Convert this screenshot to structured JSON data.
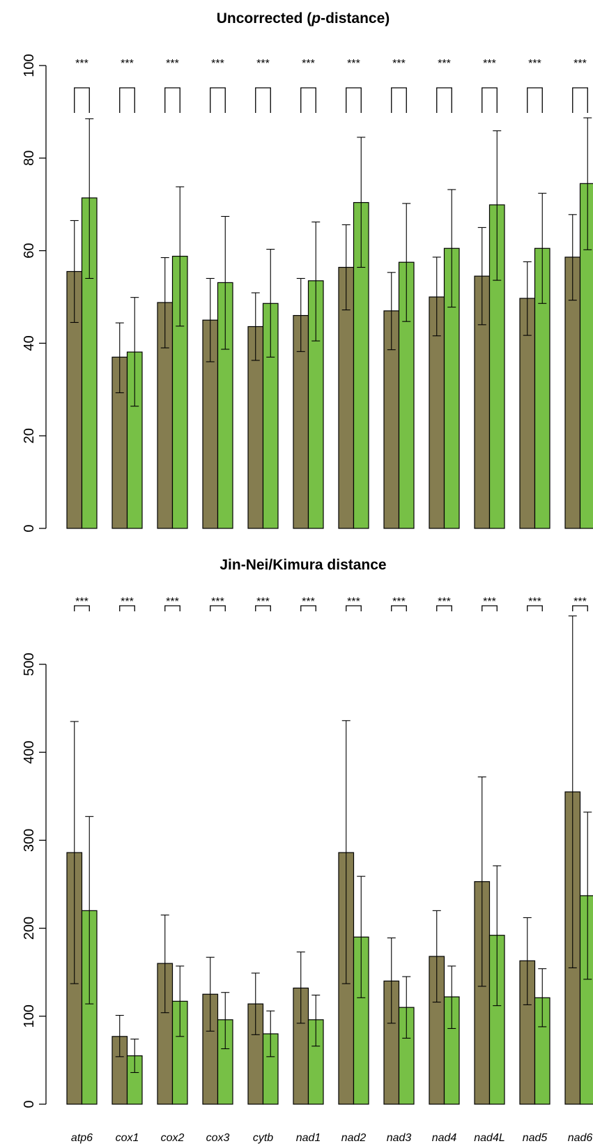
{
  "colors": {
    "series_a": "#857D50",
    "series_b": "#77C046"
  },
  "chart_data": [
    {
      "type": "bar",
      "title_pre": "Uncorrected (",
      "title_em": "p",
      "title_post": "-distance)",
      "xlabel": "",
      "ylabel": "",
      "ylim": [
        0,
        100
      ],
      "yticks": [
        0,
        20,
        40,
        60,
        80,
        100
      ],
      "grid": false,
      "legend": "none",
      "categories": [
        "atp6",
        "cox1",
        "cox2",
        "cox3",
        "cytb",
        "nad1",
        "nad2",
        "nad3",
        "nad4",
        "nad4L",
        "nad5",
        "nad6"
      ],
      "significance": [
        "***",
        "***",
        "***",
        "***",
        "***",
        "***",
        "***",
        "***",
        "***",
        "***",
        "***",
        "***"
      ],
      "series": [
        {
          "values": [
            55.5,
            37,
            48.8,
            45,
            43.6,
            46,
            56.4,
            47,
            50,
            54.5,
            49.7,
            58.6
          ],
          "err_low": [
            44.5,
            29.3,
            39,
            36,
            36.3,
            38.2,
            47.2,
            38.6,
            41.6,
            44,
            41.7,
            49.3
          ],
          "err_high": [
            66.5,
            44.4,
            58.5,
            54,
            50.9,
            54,
            65.6,
            55.3,
            58.6,
            65,
            57.6,
            67.8
          ]
        },
        {
          "values": [
            71.4,
            38.1,
            58.8,
            53.1,
            48.6,
            53.5,
            70.4,
            57.5,
            60.5,
            69.9,
            60.5,
            74.5
          ],
          "err_low": [
            54,
            26.4,
            43.7,
            38.7,
            37,
            40.5,
            56.4,
            44.7,
            47.8,
            53.6,
            48.6,
            60.2
          ],
          "err_high": [
            88.5,
            49.9,
            73.8,
            67.4,
            60.3,
            66.2,
            84.5,
            70.2,
            73.2,
            85.9,
            72.4,
            88.7
          ]
        }
      ]
    },
    {
      "type": "bar",
      "title": "Jin-Nei/Kimura distance",
      "xlabel": "",
      "ylabel": "",
      "ylim": [
        0,
        550
      ],
      "yticks": [
        0,
        100,
        200,
        300,
        400,
        500
      ],
      "grid": false,
      "legend": "none",
      "categories": [
        "atp6",
        "cox1",
        "cox2",
        "cox3",
        "cytb",
        "nad1",
        "nad2",
        "nad3",
        "nad4",
        "nad4L",
        "nad5",
        "nad6"
      ],
      "category_labels": [
        "atp6",
        "cox1",
        "cox2",
        "cox3",
        "cytb",
        "nad1",
        "nad2",
        "nad3",
        "nad4",
        "nad4L",
        "nad5",
        "nad6"
      ],
      "significance": [
        "***",
        "***",
        "***",
        "***",
        "***",
        "***",
        "***",
        "***",
        "***",
        "***",
        "***",
        "***"
      ],
      "series": [
        {
          "values": [
            286,
            77,
            160,
            125,
            114,
            132,
            286,
            140,
            168,
            253,
            163,
            355
          ],
          "err_low": [
            137,
            54,
            104,
            83,
            79,
            92,
            137,
            92,
            116,
            134,
            113,
            155
          ],
          "err_high": [
            435,
            101,
            215,
            167,
            149,
            173,
            436,
            189,
            220,
            372,
            212,
            555
          ]
        },
        {
          "values": [
            220,
            55,
            117,
            96,
            80,
            96,
            190,
            110,
            122,
            192,
            121,
            237
          ],
          "err_low": [
            114,
            36,
            77,
            63,
            54,
            66,
            121,
            75,
            86,
            112,
            88,
            142
          ],
          "err_high": [
            327,
            74,
            157,
            127,
            106,
            124,
            259,
            145,
            157,
            271,
            154,
            332
          ]
        }
      ]
    }
  ]
}
